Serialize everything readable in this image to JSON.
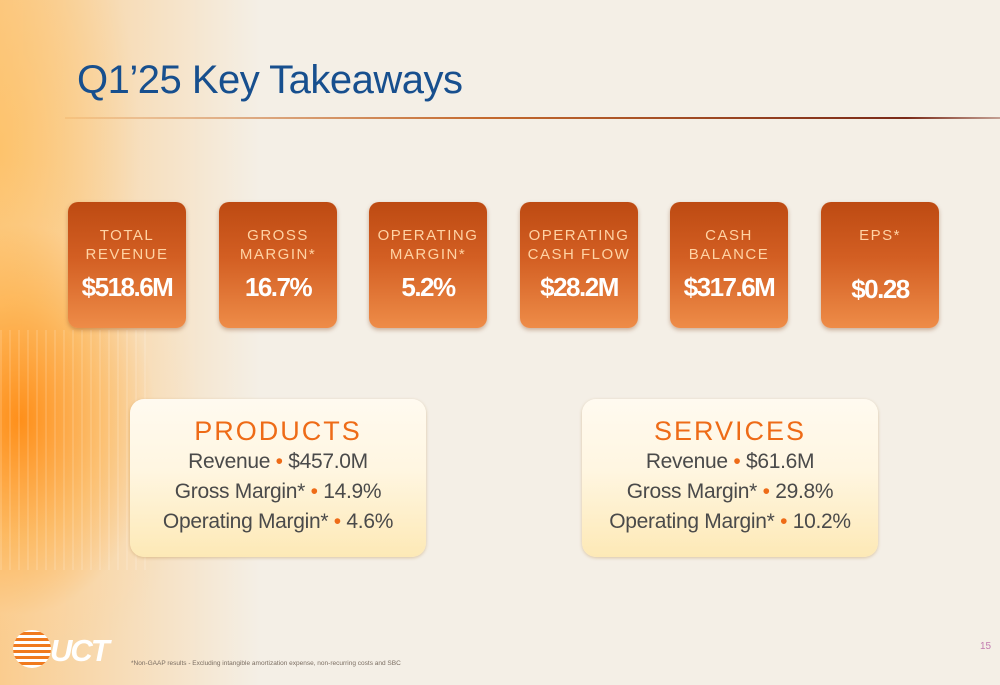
{
  "slide": {
    "title": "Q1’25 Key Takeaways",
    "page_number": "15",
    "footnote": "*Non-GAAP results - Excluding intangible amortization expense, non-recurring costs and SBC",
    "logo_text": "UCT"
  },
  "metrics": [
    {
      "label_line1": "TOTAL",
      "label_line2": "REVENUE",
      "value": "$518.6M"
    },
    {
      "label_line1": "GROSS",
      "label_line2": "MARGIN*",
      "value": "16.7%"
    },
    {
      "label_line1": "OPERATING",
      "label_line2": "MARGIN*",
      "value": "5.2%"
    },
    {
      "label_line1": "OPERATING",
      "label_line2": "CASH FLOW",
      "value": "$28.2M"
    },
    {
      "label_line1": "CASH",
      "label_line2": "BALANCE",
      "value": "$317.6M"
    },
    {
      "label_line1": "EPS*",
      "label_line2": "",
      "value": "$0.28"
    }
  ],
  "segments": [
    {
      "title": "PRODUCTS",
      "rows": [
        {
          "label": "Revenue",
          "sep": "•",
          "value": "$457.0M"
        },
        {
          "label": "Gross Margin*",
          "sep": "•",
          "value": "14.9%"
        },
        {
          "label": "Operating Margin*",
          "sep": "•",
          "value": "4.6%"
        }
      ]
    },
    {
      "title": "SERVICES",
      "rows": [
        {
          "label": "Revenue",
          "sep": "•",
          "value": "$61.6M"
        },
        {
          "label": "Gross Margin*",
          "sep": "•",
          "value": "29.8%"
        },
        {
          "label": "Operating Margin*",
          "sep": "•",
          "value": "10.2%"
        }
      ]
    }
  ],
  "colors": {
    "title": "#174f8e",
    "accent": "#ee6b17",
    "tile_top": "#bd4a12",
    "tile_bottom": "#ee8c48"
  }
}
